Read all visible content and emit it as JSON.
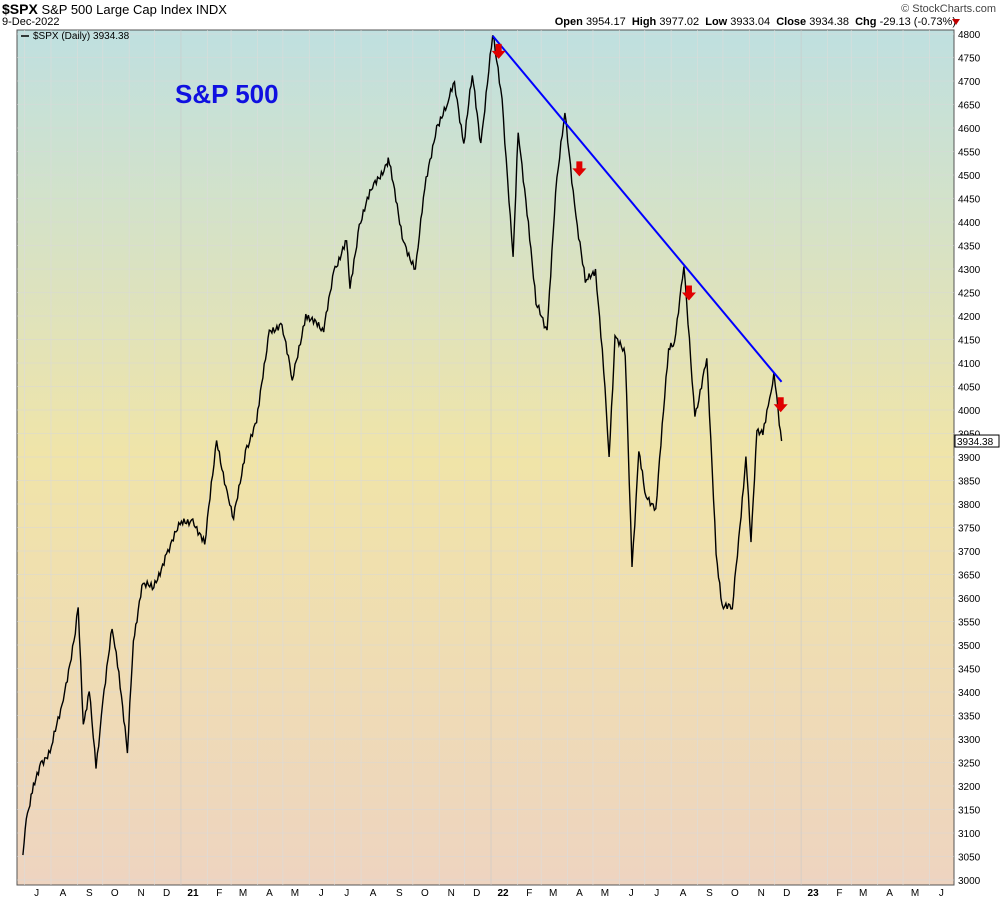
{
  "header": {
    "symbol": "$SPX",
    "name": "S&P 500 Large Cap Index",
    "exchange": "INDX",
    "date": "9-Dec-2022",
    "brand": "© StockCharts.com",
    "open_label": "Open",
    "open": "3954.17",
    "high_label": "High",
    "high": "3977.02",
    "low_label": "Low",
    "low": "3933.04",
    "close_label": "Close",
    "close": "3934.38",
    "chg_label": "Chg",
    "chg": "-29.13 (-0.73%)",
    "chg_color": "#c00000"
  },
  "legend": {
    "text": "$SPX (Daily) 3934.38"
  },
  "annotation": {
    "text": "S&P 500",
    "color": "#1010e0"
  },
  "price_tag": "3934.38",
  "colors": {
    "line": "#000000",
    "trendline": "#0000ff",
    "arrow": "#e00000",
    "bg_top": "#bfe0e0",
    "bg_mid": "#f0e4a8",
    "bg_bottom": "#eed4c0"
  },
  "chart_data": {
    "type": "line",
    "title": "$SPX S&P 500 Large Cap Index INDX",
    "ylabel": "",
    "xlabel": "",
    "ylim": [
      3000,
      4820
    ],
    "yticks": [
      3000,
      3050,
      3100,
      3150,
      3200,
      3250,
      3300,
      3350,
      3400,
      3450,
      3500,
      3550,
      3600,
      3650,
      3700,
      3750,
      3800,
      3850,
      3900,
      3950,
      4000,
      4050,
      4100,
      4150,
      4200,
      4250,
      4300,
      4350,
      4400,
      4450,
      4500,
      4550,
      4600,
      4650,
      4700,
      4750,
      4800
    ],
    "xticks": [
      "J",
      "A",
      "S",
      "O",
      "N",
      "D",
      "21",
      "F",
      "M",
      "A",
      "M",
      "J",
      "J",
      "A",
      "S",
      "O",
      "N",
      "D",
      "22",
      "F",
      "M",
      "A",
      "M",
      "J",
      "J",
      "A",
      "S",
      "O",
      "N",
      "D",
      "23",
      "F",
      "M",
      "A",
      "M",
      "J"
    ],
    "grid": true,
    "series": [
      {
        "name": "$SPX (Daily)",
        "x": [
          "2020-06-29",
          "2020-07-03",
          "2020-07-10",
          "2020-07-20",
          "2020-07-31",
          "2020-08-14",
          "2020-08-28",
          "2020-09-02",
          "2020-09-08",
          "2020-09-15",
          "2020-09-23",
          "2020-10-01",
          "2020-10-12",
          "2020-10-20",
          "2020-10-30",
          "2020-11-06",
          "2020-11-16",
          "2020-11-30",
          "2020-12-15",
          "2020-12-31",
          "2021-01-15",
          "2021-01-29",
          "2021-02-12",
          "2021-02-26",
          "2021-03-04",
          "2021-03-18",
          "2021-03-31",
          "2021-04-15",
          "2021-04-30",
          "2021-05-12",
          "2021-05-28",
          "2021-06-18",
          "2021-06-30",
          "2021-07-15",
          "2021-07-19",
          "2021-07-30",
          "2021-08-13",
          "2021-08-31",
          "2021-09-02",
          "2021-09-20",
          "2021-10-04",
          "2021-10-15",
          "2021-10-29",
          "2021-11-10",
          "2021-11-19",
          "2021-11-30",
          "2021-12-10",
          "2021-12-20",
          "2022-01-03",
          "2022-01-14",
          "2022-01-27",
          "2022-02-02",
          "2022-02-14",
          "2022-02-23",
          "2022-03-08",
          "2022-03-18",
          "2022-03-29",
          "2022-04-11",
          "2022-04-22",
          "2022-05-04",
          "2022-05-12",
          "2022-05-20",
          "2022-05-27",
          "2022-06-08",
          "2022-06-16",
          "2022-06-24",
          "2022-07-01",
          "2022-07-14",
          "2022-07-29",
          "2022-08-05",
          "2022-08-16",
          "2022-08-29",
          "2022-09-12",
          "2022-09-23",
          "2022-09-30",
          "2022-10-12",
          "2022-10-21",
          "2022-10-28",
          "2022-11-03",
          "2022-11-10",
          "2022-11-17",
          "2022-11-25",
          "2022-11-30",
          "2022-12-05",
          "2022-12-09"
        ],
        "values": [
          3053,
          3130,
          3185,
          3251,
          3271,
          3373,
          3508,
          3580,
          3331,
          3401,
          3237,
          3380,
          3534,
          3443,
          3270,
          3509,
          3627,
          3622,
          3694,
          3756,
          3768,
          3714,
          3935,
          3811,
          3768,
          3915,
          3973,
          4170,
          4181,
          4063,
          4204,
          4166,
          4297,
          4360,
          4258,
          4395,
          4468,
          4523,
          4537,
          4358,
          4300,
          4471,
          4605,
          4646,
          4698,
          4567,
          4712,
          4568,
          4797,
          4662,
          4326,
          4590,
          4401,
          4225,
          4170,
          4463,
          4632,
          4412,
          4271,
          4300,
          4130,
          3900,
          4158,
          4115,
          3666,
          3912,
          3825,
          3790,
          4130,
          4145,
          4305,
          3986,
          4110,
          3693,
          3586,
          3577,
          3752,
          3901,
          3719,
          3956,
          3947,
          4026,
          4080,
          3998,
          3934
        ]
      }
    ],
    "trendline": {
      "from": [
        "2022-01-03",
        4796
      ],
      "to": [
        "2022-12-09",
        4060
      ]
    },
    "arrows": [
      {
        "x": "2022-01-10",
        "y": 4762
      },
      {
        "x": "2022-04-15",
        "y": 4512
      },
      {
        "x": "2022-08-22",
        "y": 4248
      },
      {
        "x": "2022-12-08",
        "y": 4010
      }
    ]
  }
}
